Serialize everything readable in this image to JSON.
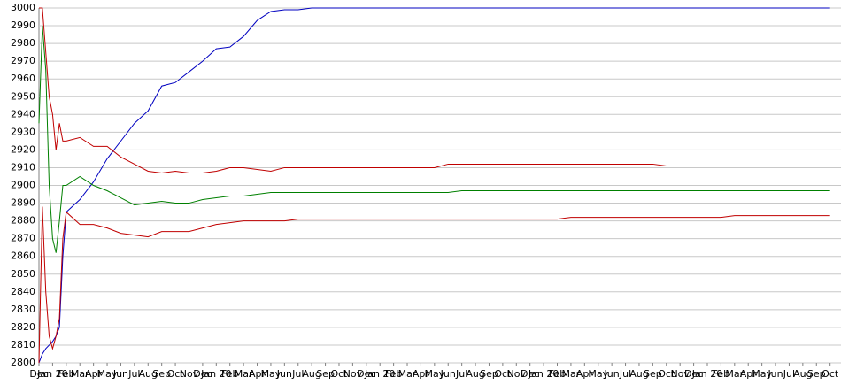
{
  "chart_data": {
    "type": "line",
    "x": [
      0,
      0.25,
      0.5,
      0.75,
      1,
      1.25,
      1.5,
      1.75,
      2,
      3,
      4,
      5,
      6,
      7,
      8,
      9,
      10,
      11,
      12,
      13,
      14,
      15,
      16,
      17,
      18,
      19,
      20,
      21,
      22,
      23,
      24,
      25,
      26,
      27,
      28,
      29,
      30,
      31,
      32,
      33,
      34,
      35,
      36,
      37,
      38,
      39,
      40,
      41,
      42,
      43,
      44,
      45,
      46,
      47,
      48,
      49,
      50,
      51,
      52,
      53,
      54,
      55,
      56,
      57,
      58
    ],
    "xlim": [
      0,
      58.8
    ],
    "xticks": [
      {
        "value": 0,
        "label": "Dec"
      },
      {
        "value": 1,
        "label": "Jan 20"
      },
      {
        "value": 2,
        "label": "Feb"
      },
      {
        "value": 3,
        "label": "Mar"
      },
      {
        "value": 4,
        "label": "Apr"
      },
      {
        "value": 5,
        "label": "May"
      },
      {
        "value": 6,
        "label": "Jun"
      },
      {
        "value": 7,
        "label": "Jul"
      },
      {
        "value": 8,
        "label": "Aug"
      },
      {
        "value": 9,
        "label": "Sep"
      },
      {
        "value": 10,
        "label": "Oct"
      },
      {
        "value": 11,
        "label": "Nov"
      },
      {
        "value": 12,
        "label": "Dec"
      },
      {
        "value": 13,
        "label": "Jan 20"
      },
      {
        "value": 14,
        "label": "Feb"
      },
      {
        "value": 15,
        "label": "Mar"
      },
      {
        "value": 16,
        "label": "Apr"
      },
      {
        "value": 17,
        "label": "May"
      },
      {
        "value": 18,
        "label": "Jun"
      },
      {
        "value": 19,
        "label": "Jul"
      },
      {
        "value": 20,
        "label": "Aug"
      },
      {
        "value": 21,
        "label": "Sep"
      },
      {
        "value": 22,
        "label": "Oct"
      },
      {
        "value": 23,
        "label": "Nov"
      },
      {
        "value": 24,
        "label": "Dec"
      },
      {
        "value": 25,
        "label": "Jan 20"
      },
      {
        "value": 26,
        "label": "Feb"
      },
      {
        "value": 27,
        "label": "Mar"
      },
      {
        "value": 28,
        "label": "Apr"
      },
      {
        "value": 29,
        "label": "May"
      },
      {
        "value": 30,
        "label": "Jun"
      },
      {
        "value": 31,
        "label": "Jul"
      },
      {
        "value": 32,
        "label": "Aug"
      },
      {
        "value": 33,
        "label": "Sep"
      },
      {
        "value": 34,
        "label": "Oct"
      },
      {
        "value": 35,
        "label": "Nov"
      },
      {
        "value": 36,
        "label": "Dec"
      },
      {
        "value": 37,
        "label": "Jan 20"
      },
      {
        "value": 38,
        "label": "Feb"
      },
      {
        "value": 39,
        "label": "Mar"
      },
      {
        "value": 40,
        "label": "Apr"
      },
      {
        "value": 41,
        "label": "May"
      },
      {
        "value": 42,
        "label": "Jun"
      },
      {
        "value": 43,
        "label": "Jul"
      },
      {
        "value": 44,
        "label": "Aug"
      },
      {
        "value": 45,
        "label": "Sep"
      },
      {
        "value": 46,
        "label": "Oct"
      },
      {
        "value": 47,
        "label": "Nov"
      },
      {
        "value": 48,
        "label": "Dec"
      },
      {
        "value": 49,
        "label": "Jan 20"
      },
      {
        "value": 50,
        "label": "Feb"
      },
      {
        "value": 51,
        "label": "Mar"
      },
      {
        "value": 52,
        "label": "Apr"
      },
      {
        "value": 53,
        "label": "May"
      },
      {
        "value": 54,
        "label": "Jun"
      },
      {
        "value": 55,
        "label": "Jul"
      },
      {
        "value": 56,
        "label": "Aug"
      },
      {
        "value": 57,
        "label": "Sep"
      },
      {
        "value": 58,
        "label": "Oct"
      }
    ],
    "ylim": [
      2800,
      3000
    ],
    "yticks": [
      2800,
      2810,
      2820,
      2830,
      2840,
      2850,
      2860,
      2870,
      2880,
      2890,
      2900,
      2910,
      2920,
      2930,
      2940,
      2950,
      2960,
      2970,
      2980,
      2990,
      3000
    ],
    "grid": true,
    "series": [
      {
        "color": "#0000c0",
        "values": [
          2800,
          2805,
          2808,
          2810,
          2812,
          2815,
          2820,
          2860,
          2885,
          2892,
          2902,
          2915,
          2925,
          2935,
          2942,
          2956,
          2958,
          2964,
          2970,
          2977,
          2978,
          2984,
          2993,
          2998,
          2999,
          2999,
          3000,
          3000,
          3000,
          3000,
          3000,
          3000,
          3000,
          3000,
          3000,
          3000,
          3000,
          3000,
          3000,
          3000,
          3000,
          3000,
          3000,
          3000,
          3000,
          3000,
          3000,
          3000,
          3000,
          3000,
          3000,
          3000,
          3000,
          3000,
          3000,
          3000,
          3000,
          3000,
          3000,
          3000,
          3000,
          3000,
          3000,
          3000,
          3000
        ]
      },
      {
        "color": "#008000",
        "values": [
          2935,
          2990,
          2965,
          2900,
          2870,
          2862,
          2880,
          2900,
          2900,
          2905,
          2900,
          2897,
          2893,
          2889,
          2890,
          2891,
          2890,
          2890,
          2892,
          2893,
          2894,
          2894,
          2895,
          2896,
          2896,
          2896,
          2896,
          2896,
          2896,
          2896,
          2896,
          2896,
          2896,
          2896,
          2896,
          2896,
          2896,
          2897,
          2897,
          2897,
          2897,
          2897,
          2897,
          2897,
          2897,
          2897,
          2897,
          2897,
          2897,
          2897,
          2897,
          2897,
          2897,
          2897,
          2897,
          2897,
          2897,
          2897,
          2897,
          2897,
          2897,
          2897,
          2897,
          2897,
          2897
        ]
      },
      {
        "color": "#c00000",
        "values": [
          3000,
          3000,
          2975,
          2950,
          2940,
          2920,
          2935,
          2925,
          2925,
          2927,
          2922,
          2922,
          2916,
          2912,
          2908,
          2907,
          2908,
          2907,
          2907,
          2908,
          2910,
          2910,
          2909,
          2908,
          2910,
          2910,
          2910,
          2910,
          2910,
          2910,
          2910,
          2910,
          2910,
          2910,
          2910,
          2910,
          2912,
          2912,
          2912,
          2912,
          2912,
          2912,
          2912,
          2912,
          2912,
          2912,
          2912,
          2912,
          2912,
          2912,
          2912,
          2912,
          2911,
          2911,
          2911,
          2911,
          2911,
          2911,
          2911,
          2911,
          2911,
          2911,
          2911,
          2911,
          2911
        ]
      },
      {
        "color": "#c00000",
        "values": [
          2800,
          2888,
          2840,
          2815,
          2808,
          2815,
          2825,
          2870,
          2885,
          2878,
          2878,
          2876,
          2873,
          2872,
          2871,
          2874,
          2874,
          2874,
          2876,
          2878,
          2879,
          2880,
          2880,
          2880,
          2880,
          2881,
          2881,
          2881,
          2881,
          2881,
          2881,
          2881,
          2881,
          2881,
          2881,
          2881,
          2881,
          2881,
          2881,
          2881,
          2881,
          2881,
          2881,
          2881,
          2881,
          2882,
          2882,
          2882,
          2882,
          2882,
          2882,
          2882,
          2882,
          2882,
          2882,
          2882,
          2882,
          2883,
          2883,
          2883,
          2883,
          2883,
          2883,
          2883,
          2883
        ]
      }
    ]
  }
}
